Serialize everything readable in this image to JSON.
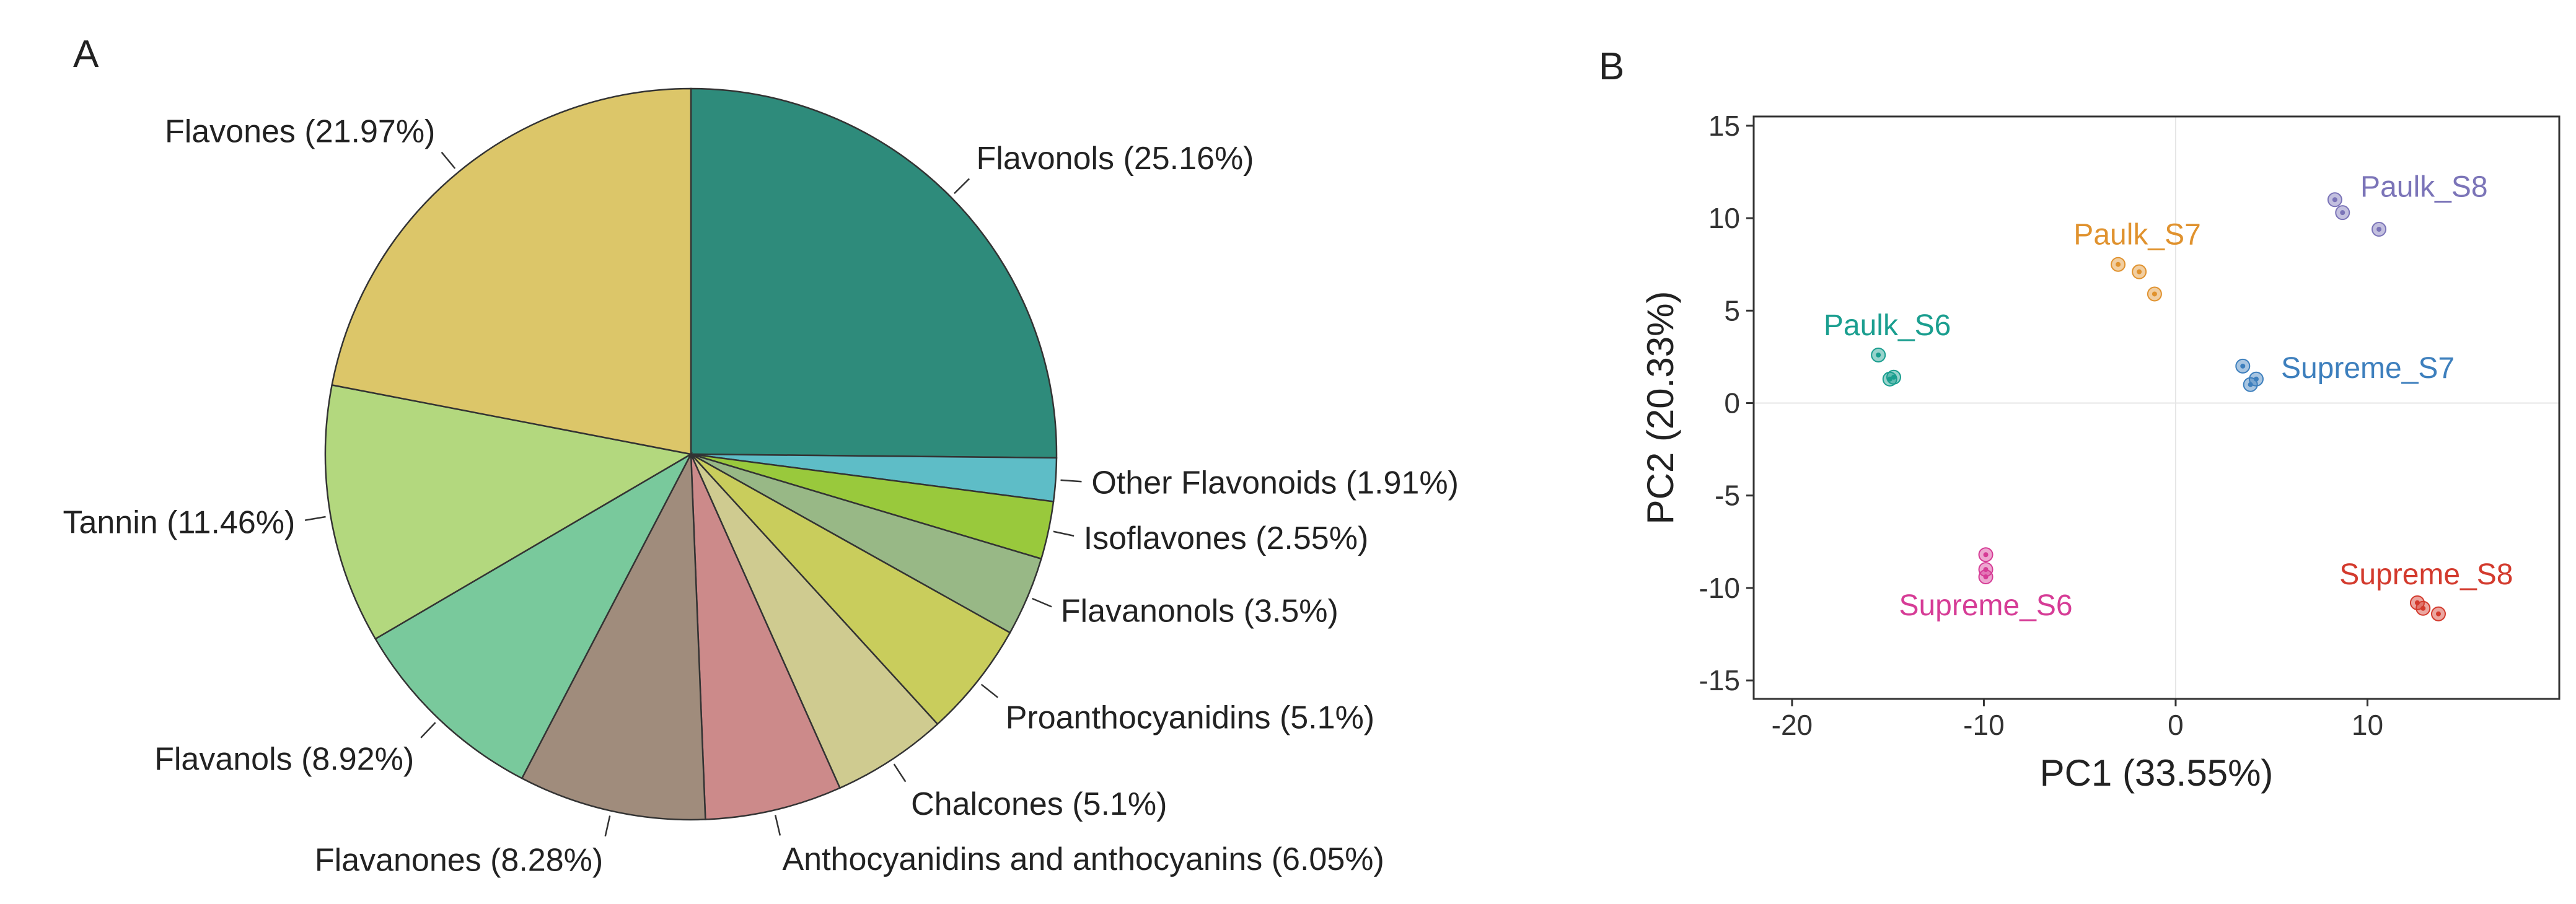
{
  "panels": {
    "a_label": "A",
    "b_label": "B"
  },
  "chart_data": [
    {
      "type": "pie",
      "panel": "A",
      "direction": "clockwise",
      "start": "12 o'clock",
      "slices": [
        {
          "name": "Flavonols",
          "label": "Flavonols (25.16%)",
          "value": 25.16,
          "color": "#2e8b7b"
        },
        {
          "name": "Other Flavonoids",
          "label": "Other Flavonoids (1.91%)",
          "value": 1.91,
          "color": "#5ebdc7"
        },
        {
          "name": "Isoflavones",
          "label": "Isoflavones (2.55%)",
          "value": 2.55,
          "color": "#99c93c"
        },
        {
          "name": "Flavanonols",
          "label": "Flavanonols (3.5%)",
          "value": 3.5,
          "color": "#98b886"
        },
        {
          "name": "Proanthocyanidins",
          "label": "Proanthocyanidins (5.1%)",
          "value": 5.1,
          "color": "#c9cd5c"
        },
        {
          "name": "Chalcones",
          "label": "Chalcones (5.1%)",
          "value": 5.1,
          "color": "#cfcb90"
        },
        {
          "name": "Anthocyanidins and anthocyanins",
          "label": "Anthocyanidins and anthocyanins (6.05%)",
          "value": 6.05,
          "color": "#cc8a8a"
        },
        {
          "name": "Flavanones",
          "label": "Flavanones (8.28%)",
          "value": 8.28,
          "color": "#a08c7c"
        },
        {
          "name": "Flavanols",
          "label": "Flavanols (8.92%)",
          "value": 8.92,
          "color": "#79c99c"
        },
        {
          "name": "Tannin",
          "label": "Tannin (11.46%)",
          "value": 11.46,
          "color": "#b3d87e"
        },
        {
          "name": "Flavones",
          "label": "Flavones (21.97%)",
          "value": 21.97,
          "color": "#dcc669"
        }
      ]
    },
    {
      "type": "scatter",
      "panel": "B",
      "xlabel": "PC1 (33.55%)",
      "ylabel": "PC2 (20.33%)",
      "xlim": [
        -22,
        20
      ],
      "ylim": [
        -16,
        15.5
      ],
      "xticks": [
        -20,
        -10,
        0,
        10
      ],
      "yticks": [
        15,
        10,
        5,
        0,
        -5,
        -10,
        -15
      ],
      "zero_lines": true,
      "series": [
        {
          "name": "Paulk_S6",
          "color": "#1a9e8f",
          "points": [
            [
              -15.5,
              2.6
            ],
            [
              -14.9,
              1.3
            ],
            [
              -14.7,
              1.4
            ]
          ]
        },
        {
          "name": "Paulk_S7",
          "color": "#e0922e",
          "points": [
            [
              -3.0,
              7.5
            ],
            [
              -1.9,
              7.1
            ],
            [
              -1.1,
              5.9
            ]
          ]
        },
        {
          "name": "Paulk_S8",
          "color": "#7b74b8",
          "points": [
            [
              8.3,
              11.0
            ],
            [
              8.7,
              10.3
            ],
            [
              10.6,
              9.4
            ]
          ]
        },
        {
          "name": "Supreme_S6",
          "color": "#d63c96",
          "points": [
            [
              -9.9,
              -8.2
            ],
            [
              -9.9,
              -9.0
            ],
            [
              -9.9,
              -9.4
            ]
          ]
        },
        {
          "name": "Supreme_S7",
          "color": "#3d7fbd",
          "points": [
            [
              3.5,
              2.0
            ],
            [
              3.9,
              1.0
            ],
            [
              4.2,
              1.3
            ]
          ]
        },
        {
          "name": "Supreme_S8",
          "color": "#d33a2d",
          "points": [
            [
              12.6,
              -10.8
            ],
            [
              12.9,
              -11.1
            ],
            [
              13.7,
              -11.4
            ]
          ]
        }
      ]
    }
  ]
}
